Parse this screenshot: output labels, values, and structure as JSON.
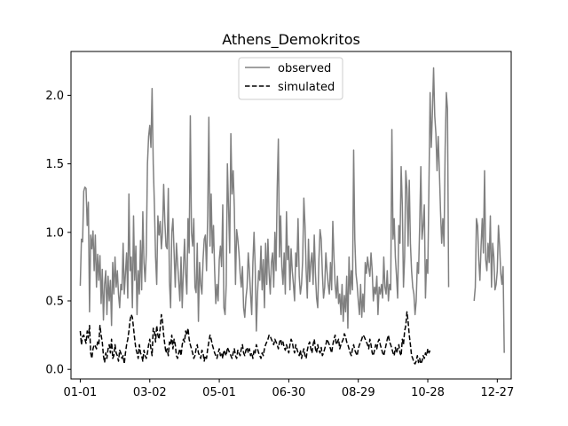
{
  "chart_data": {
    "type": "line",
    "title": "Athens_Demokritos",
    "xlabel": "",
    "ylabel": "",
    "x_ticks": [
      "01-01",
      "03-02",
      "05-01",
      "06-30",
      "08-29",
      "10-28",
      "12-27"
    ],
    "x_tick_days": [
      0,
      60,
      120,
      180,
      240,
      300,
      360
    ],
    "x_range_days": [
      -8,
      372
    ],
    "ylim": [
      -0.07,
      2.32
    ],
    "y_ticks": [
      0.0,
      0.5,
      1.0,
      1.5,
      2.0
    ],
    "y_tick_labels": [
      "0.0",
      "0.5",
      "1.0",
      "1.5",
      "2.0"
    ],
    "legend_position": "upper center",
    "grid": false,
    "series": [
      {
        "name": "observed",
        "color": "#808080",
        "dash": "solid",
        "segments": [
          {
            "start_day": 0,
            "values": [
              0.61,
              0.95,
              0.93,
              1.3,
              1.33,
              1.32,
              1.05,
              1.22,
              0.42,
              0.98,
              0.88,
              1.01,
              0.72,
              0.98,
              0.6,
              0.84,
              0.65,
              0.83,
              0.48,
              0.73,
              0.36,
              0.62,
              0.72,
              0.4,
              0.68,
              0.5,
              0.65,
              0.32,
              0.78,
              0.55,
              0.82,
              0.6,
              0.72,
              0.55,
              0.45,
              0.62,
              0.58,
              0.92,
              0.55,
              0.7,
              0.85,
              0.52,
              1.28,
              0.72,
              0.82,
              0.45,
              1.12,
              0.65,
              0.9,
              0.4,
              0.72,
              0.55,
              0.94,
              0.58,
              1.15,
              0.78,
              0.64,
              0.85,
              1.5,
              1.7,
              1.78,
              1.62,
              2.05,
              1.5,
              1.2,
              0.82,
              0.62,
              1.12,
              0.98,
              1.08,
              0.88,
              1.0,
              1.35,
              1.08,
              0.9,
              0.88,
              1.32,
              0.64,
              0.45,
              1.0,
              1.1,
              0.85,
              0.6,
              0.92,
              0.78,
              0.64,
              0.5,
              0.82,
              0.45,
              0.72,
              0.95,
              0.7,
              0.55,
              1.1,
              0.85,
              1.85,
              1.0,
              0.9,
              1.1,
              0.6,
              0.56,
              0.92,
              0.35,
              0.78,
              0.62,
              0.55,
              0.8,
              0.95,
              0.98,
              0.72,
              1.12,
              1.84,
              0.9,
              1.28,
              0.85,
              1.05,
              0.72,
              0.48,
              0.62,
              0.5,
              0.8,
              0.9,
              0.75,
              1.2,
              0.45,
              0.4,
              0.62,
              1.5,
              1.18,
              0.85,
              1.72,
              1.28,
              1.45,
              1.18,
              0.62,
              1.02,
              0.95,
              0.85,
              0.7,
              0.6,
              0.75,
              0.45,
              0.38,
              0.52,
              0.6,
              0.85,
              0.72,
              0.55,
              0.4,
              0.78,
              1.0,
              0.75,
              0.28,
              0.55,
              0.72,
              0.65,
              0.9,
              0.58,
              0.8,
              0.45,
              0.92,
              0.62,
              0.95,
              0.7,
              0.55,
              0.78,
              0.85,
              0.6,
              1.0,
              0.72,
              1.32,
              1.68,
              0.82,
              1.12,
              0.75,
              0.62,
              0.85,
              0.55,
              1.15,
              0.8,
              0.9,
              0.58,
              0.88,
              0.72,
              0.62,
              0.5,
              0.85,
              0.75,
              1.1,
              0.68,
              0.55,
              0.62,
              0.8,
              1.25,
              1.05,
              0.72,
              0.52,
              0.95,
              0.64,
              0.78,
              0.85,
              0.62,
              0.98,
              0.7,
              0.52,
              0.45,
              0.8,
              1.02,
              0.95,
              0.7,
              0.52,
              0.6,
              0.85,
              0.72,
              0.62,
              0.55,
              0.78,
              0.58,
              1.08,
              0.82,
              0.62,
              0.52,
              0.68,
              0.48,
              0.55,
              0.4,
              0.62,
              0.35,
              0.54,
              0.42,
              0.68,
              0.3,
              0.82,
              0.55,
              0.72,
              0.58,
              1.6,
              0.95,
              0.7,
              0.62,
              0.5,
              0.4,
              0.62,
              0.38,
              0.55,
              0.42,
              0.78,
              0.7,
              0.82,
              0.74,
              0.68,
              0.85,
              0.72,
              0.5,
              0.6,
              0.55,
              0.68,
              0.4,
              0.6,
              0.55,
              0.62,
              0.52,
              0.82,
              0.6,
              0.55,
              0.72,
              0.5,
              0.62,
              0.58,
              1.75,
              0.95,
              1.1,
              0.82,
              0.68,
              0.52,
              1.05,
              0.92,
              1.48,
              1.2,
              0.6,
              0.82,
              1.45,
              1.32,
              0.9,
              1.38,
              0.92,
              0.72,
              0.6,
              0.55,
              0.4,
              0.5,
              0.78,
              0.7,
              1.05,
              1.48,
              0.95,
              1.05,
              1.2,
              0.52,
              0.8,
              0.7,
              1.35,
              2.02,
              1.62,
              1.88,
              2.2,
              1.85,
              1.72,
              1.45,
              1.7,
              1.45,
              1.15,
              0.92,
              1.1,
              0.9,
              1.62,
              2.02,
              1.9,
              0.6
            ]
          },
          {
            "start_day": 340,
            "values": [
              0.5,
              0.6,
              1.1,
              1.05,
              0.8,
              0.65,
              0.9,
              1.1,
              0.85,
              1.45,
              0.8,
              0.72,
              0.92,
              0.78,
              1.12,
              0.6,
              0.92,
              0.82,
              0.58,
              0.62,
              0.72,
              1.05,
              0.9,
              0.7,
              0.62,
              0.75,
              0.12
            ]
          }
        ]
      },
      {
        "name": "simulated",
        "color": "#000000",
        "dash": "dashed",
        "segments": [
          {
            "start_day": 0,
            "values": [
              0.28,
              0.18,
              0.24,
              0.25,
              0.22,
              0.19,
              0.28,
              0.23,
              0.32,
              0.12,
              0.08,
              0.15,
              0.18,
              0.17,
              0.15,
              0.2,
              0.18,
              0.32,
              0.25,
              0.2,
              0.1,
              0.05,
              0.12,
              0.08,
              0.15,
              0.18,
              0.12,
              0.22,
              0.08,
              0.1,
              0.18,
              0.12,
              0.1,
              0.06,
              0.14,
              0.12,
              0.08,
              0.1,
              0.04,
              0.12,
              0.18,
              0.22,
              0.28,
              0.36,
              0.4,
              0.38,
              0.3,
              0.22,
              0.15,
              0.12,
              0.08,
              0.18,
              0.12,
              0.1,
              0.06,
              0.14,
              0.1,
              0.08,
              0.12,
              0.18,
              0.22,
              0.15,
              0.1,
              0.3,
              0.28,
              0.2,
              0.32,
              0.25,
              0.22,
              0.3,
              0.4,
              0.35,
              0.25,
              0.18,
              0.12,
              0.15,
              0.1,
              0.2,
              0.18,
              0.25,
              0.15,
              0.22,
              0.18,
              0.1,
              0.08,
              0.12,
              0.15,
              0.1,
              0.18,
              0.22,
              0.2,
              0.28,
              0.25,
              0.3,
              0.22,
              0.18,
              0.15,
              0.12,
              0.08,
              0.1,
              0.15,
              0.18,
              0.12,
              0.1,
              0.08,
              0.14,
              0.12,
              0.06,
              0.1,
              0.08,
              0.15,
              0.2,
              0.25,
              0.22,
              0.18,
              0.15,
              0.12,
              0.1,
              0.08,
              0.12,
              0.15,
              0.1,
              0.12,
              0.08,
              0.14,
              0.12,
              0.1,
              0.16,
              0.14,
              0.12,
              0.1,
              0.08,
              0.12,
              0.15,
              0.1,
              0.08,
              0.14,
              0.12,
              0.1,
              0.15,
              0.18,
              0.12,
              0.1,
              0.14,
              0.16,
              0.12,
              0.15,
              0.1,
              0.12,
              0.08,
              0.14,
              0.12,
              0.18,
              0.15,
              0.12,
              0.1,
              0.08,
              0.12,
              0.1,
              0.15,
              0.18,
              0.2,
              0.22,
              0.25,
              0.24,
              0.22,
              0.2,
              0.18,
              0.22,
              0.2,
              0.18,
              0.15,
              0.2,
              0.22,
              0.18,
              0.2,
              0.16,
              0.14,
              0.18,
              0.15,
              0.12,
              0.18,
              0.22,
              0.2,
              0.15,
              0.12,
              0.18,
              0.15,
              0.12,
              0.1,
              0.14,
              0.08,
              0.12,
              0.15,
              0.1,
              0.08,
              0.14,
              0.18,
              0.2,
              0.15,
              0.12,
              0.18,
              0.22,
              0.15,
              0.12,
              0.18,
              0.14,
              0.12,
              0.16,
              0.1,
              0.12,
              0.15,
              0.18,
              0.22,
              0.2,
              0.18,
              0.15,
              0.12,
              0.18,
              0.22,
              0.25,
              0.18,
              0.2,
              0.22,
              0.15,
              0.18,
              0.2,
              0.22,
              0.26,
              0.24,
              0.2,
              0.18,
              0.15,
              0.12,
              0.1,
              0.15,
              0.18,
              0.14,
              0.12,
              0.1,
              0.15,
              0.18,
              0.2,
              0.22,
              0.25,
              0.24,
              0.22,
              0.2,
              0.18,
              0.15,
              0.22,
              0.18,
              0.12,
              0.1,
              0.14,
              0.18,
              0.15,
              0.2,
              0.22,
              0.18,
              0.15,
              0.12,
              0.1,
              0.14,
              0.18,
              0.22,
              0.25,
              0.2,
              0.18,
              0.15,
              0.12,
              0.1,
              0.16,
              0.12,
              0.15,
              0.18,
              0.12,
              0.1,
              0.22,
              0.18,
              0.28,
              0.32,
              0.42,
              0.35,
              0.25,
              0.18,
              0.1,
              0.08,
              0.05,
              0.04,
              0.06,
              0.1,
              0.05,
              0.08,
              0.04,
              0.06,
              0.1,
              0.08,
              0.12,
              0.1,
              0.15,
              0.12,
              0.14
            ]
          }
        ]
      }
    ]
  }
}
